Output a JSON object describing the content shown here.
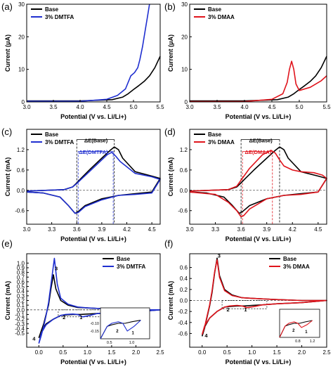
{
  "colors": {
    "base": "#000000",
    "dmtfa": "#1f2fd0",
    "dmaa": "#e0141c",
    "axis": "#000000"
  },
  "chart_data": [
    {
      "id": "a",
      "panel_label": "(a)",
      "type": "line",
      "xlabel": "Potential (V vs. Li/Li+)",
      "ylabel": "Current (μA)",
      "xlim": [
        3.0,
        5.5
      ],
      "ylim": [
        0,
        30
      ],
      "xticks": [
        3.0,
        3.5,
        4.0,
        4.5,
        5.0,
        5.5
      ],
      "xtick_labels": [
        "3.0",
        "3.5",
        "4.0",
        "4.5",
        "5.0",
        "5.5"
      ],
      "yticks": [
        0,
        10,
        20,
        30
      ],
      "ytick_labels": [
        "0",
        "10",
        "20",
        "30"
      ],
      "legend_position": "top-left",
      "series": [
        {
          "name": "Base",
          "color": "#000000",
          "x": [
            3.0,
            4.0,
            4.6,
            4.8,
            4.9,
            5.0,
            5.1,
            5.2,
            5.3,
            5.4,
            5.5
          ],
          "y": [
            0.3,
            0.3,
            0.7,
            1.5,
            2.5,
            3.8,
            5.0,
            6.3,
            8.0,
            10.5,
            14.0
          ]
        },
        {
          "name": "3% DMTFA",
          "color": "#1f2fd0",
          "x": [
            3.0,
            4.0,
            4.5,
            4.7,
            4.85,
            4.95,
            5.02,
            5.08,
            5.12,
            5.17,
            5.22,
            5.26,
            5.3
          ],
          "y": [
            0.2,
            0.2,
            0.8,
            2.0,
            4.0,
            8.0,
            9.0,
            10.5,
            13.0,
            17.0,
            22.0,
            26.0,
            30.0
          ]
        }
      ]
    },
    {
      "id": "b",
      "panel_label": "(b)",
      "type": "line",
      "xlabel": "Potential (V vs. Li/Li+)",
      "ylabel": "Current (μA)",
      "xlim": [
        3.0,
        5.5
      ],
      "ylim": [
        0,
        30
      ],
      "xticks": [
        3.0,
        3.5,
        4.0,
        4.5,
        5.0,
        5.5
      ],
      "xtick_labels": [
        "3.0",
        "3.5",
        "4.0",
        "4.5",
        "5.0",
        "5.5"
      ],
      "yticks": [
        0,
        10,
        20,
        30
      ],
      "ytick_labels": [
        "0",
        "10",
        "20",
        "30"
      ],
      "legend_position": "top-left",
      "series": [
        {
          "name": "Base",
          "color": "#000000",
          "x": [
            3.0,
            4.0,
            4.6,
            4.8,
            4.9,
            5.0,
            5.1,
            5.2,
            5.3,
            5.4,
            5.5
          ],
          "y": [
            0.3,
            0.3,
            0.7,
            1.5,
            2.5,
            3.8,
            5.0,
            6.3,
            8.0,
            10.5,
            14.0
          ]
        },
        {
          "name": "3% DMAA",
          "color": "#e0141c",
          "x": [
            3.0,
            4.0,
            4.5,
            4.7,
            4.78,
            4.82,
            4.86,
            4.9,
            4.94,
            5.0,
            5.2,
            5.4,
            5.5
          ],
          "y": [
            0.1,
            0.1,
            0.8,
            2.5,
            6.0,
            10.0,
            12.5,
            10.0,
            5.5,
            3.5,
            4.5,
            6.5,
            8.0
          ]
        }
      ]
    },
    {
      "id": "c",
      "panel_label": "(c)",
      "type": "line",
      "xlabel": "Potential (V vs. Li/Li+)",
      "ylabel": "Current (mA)",
      "xlim": [
        3.0,
        4.6
      ],
      "ylim": [
        -1.0,
        1.8
      ],
      "xticks": [
        3.0,
        3.3,
        3.6,
        3.9,
        4.2,
        4.5
      ],
      "xtick_labels": [
        "3.0",
        "3.3",
        "3.6",
        "3.9",
        "4.2",
        "4.5"
      ],
      "yticks": [
        -0.6,
        0.0,
        0.6,
        1.2
      ],
      "ytick_labels": [
        "-0.6",
        "0.0",
        "0.6",
        "1.2"
      ],
      "legend_position": "top-left",
      "annotations": [
        {
          "text": "ΔE(Base)",
          "x": 3.83,
          "y": 1.42,
          "color": "#000000"
        },
        {
          "text": "ΔE(DMTFA)",
          "x": 3.8,
          "y": 1.07,
          "color": "#1f2fd0"
        }
      ],
      "series": [
        {
          "name": "Base",
          "color": "#000000",
          "x": [
            3.0,
            3.45,
            3.55,
            3.6,
            3.65,
            3.75,
            3.9,
            4.0,
            4.05,
            4.1,
            4.15,
            4.3,
            4.5,
            4.6,
            4.5,
            4.3,
            4.1,
            3.9,
            3.7,
            3.62,
            3.58,
            3.5,
            3.4,
            3.2,
            3.0
          ],
          "y": [
            -0.02,
            0.02,
            0.1,
            0.22,
            0.35,
            0.6,
            0.95,
            1.18,
            1.28,
            1.2,
            0.95,
            0.55,
            0.42,
            0.35,
            -0.05,
            -0.1,
            -0.15,
            -0.25,
            -0.45,
            -0.62,
            -0.68,
            -0.45,
            -0.2,
            -0.08,
            -0.05
          ]
        },
        {
          "name": "3% DMTFA",
          "color": "#1f2fd0",
          "x": [
            3.0,
            3.45,
            3.55,
            3.6,
            3.65,
            3.75,
            3.9,
            3.97,
            4.02,
            4.07,
            4.12,
            4.3,
            4.5,
            4.6,
            4.5,
            4.3,
            4.1,
            3.9,
            3.7,
            3.62,
            3.58,
            3.5,
            3.4,
            3.2,
            3.0
          ],
          "y": [
            -0.02,
            0.02,
            0.1,
            0.2,
            0.32,
            0.55,
            0.9,
            1.06,
            1.12,
            1.0,
            0.85,
            0.5,
            0.4,
            0.32,
            -0.08,
            -0.12,
            -0.15,
            -0.28,
            -0.48,
            -0.65,
            -0.68,
            -0.45,
            -0.2,
            -0.08,
            -0.05
          ]
        }
      ]
    },
    {
      "id": "d",
      "panel_label": "(d)",
      "type": "line",
      "xlabel": "Potential (V vs. Li/Li+)",
      "ylabel": "Current (mA)",
      "xlim": [
        3.0,
        4.6
      ],
      "ylim": [
        -1.0,
        1.8
      ],
      "xticks": [
        3.0,
        3.3,
        3.6,
        3.9,
        4.2,
        4.5
      ],
      "xtick_labels": [
        "3.0",
        "3.3",
        "3.6",
        "3.9",
        "4.2",
        "4.5"
      ],
      "yticks": [
        -0.6,
        0.0,
        0.6,
        1.2
      ],
      "ytick_labels": [
        "-0.6",
        "0.0",
        "0.6",
        "1.2"
      ],
      "legend_position": "top-left",
      "annotations": [
        {
          "text": "ΔE(Base)",
          "x": 3.83,
          "y": 1.42,
          "color": "#000000"
        },
        {
          "text": "ΔE(DMAA)",
          "x": 3.8,
          "y": 1.07,
          "color": "#e0141c"
        }
      ],
      "series": [
        {
          "name": "Base",
          "color": "#000000",
          "x": [
            3.0,
            3.45,
            3.55,
            3.6,
            3.65,
            3.75,
            3.9,
            4.0,
            4.05,
            4.1,
            4.15,
            4.3,
            4.5,
            4.6,
            4.5,
            4.3,
            4.1,
            3.9,
            3.7,
            3.62,
            3.58,
            3.5,
            3.4,
            3.2,
            3.0
          ],
          "y": [
            -0.02,
            0.02,
            0.1,
            0.22,
            0.35,
            0.6,
            0.95,
            1.18,
            1.28,
            1.2,
            0.95,
            0.55,
            0.42,
            0.35,
            -0.05,
            -0.1,
            -0.15,
            -0.25,
            -0.45,
            -0.62,
            -0.68,
            -0.45,
            -0.2,
            -0.08,
            -0.05
          ]
        },
        {
          "name": "3% DMAA",
          "color": "#e0141c",
          "x": [
            3.0,
            3.45,
            3.55,
            3.6,
            3.7,
            3.85,
            3.95,
            4.0,
            4.05,
            4.1,
            4.2,
            4.3,
            4.45,
            4.55,
            4.6,
            4.5,
            4.3,
            4.1,
            3.9,
            3.7,
            3.63,
            3.6,
            3.55,
            3.45,
            3.3,
            3.0
          ],
          "y": [
            -0.02,
            0.02,
            0.12,
            0.3,
            0.65,
            1.05,
            1.18,
            1.1,
            0.9,
            0.72,
            0.6,
            0.55,
            0.52,
            0.45,
            0.35,
            -0.05,
            -0.12,
            -0.15,
            -0.25,
            -0.55,
            -0.75,
            -0.78,
            -0.6,
            -0.35,
            -0.12,
            -0.05
          ]
        }
      ]
    },
    {
      "id": "e",
      "panel_label": "(e)",
      "type": "line",
      "xlabel": "Potential (V vs. Li/Li+)",
      "ylabel": "Current (mA)",
      "xlim": [
        -0.25,
        2.5
      ],
      "ylim": [
        -0.8,
        1.2
      ],
      "xticks": [
        0.0,
        0.5,
        1.0,
        1.5,
        2.0,
        2.5
      ],
      "xtick_labels": [
        "0.0",
        "0.5",
        "1.0",
        "1.5",
        "2.0",
        "2.5"
      ],
      "yticks": [
        -0.5,
        -0.4,
        -0.3,
        -0.2,
        -0.1,
        0.0,
        0.1,
        0.2,
        0.3,
        0.4,
        0.5,
        0.6,
        0.7,
        0.8,
        0.9,
        1.0
      ],
      "ytick_labels": [
        "-0.5",
        "-0.4",
        "-0.3",
        "-0.2",
        "-0.1",
        "0.0",
        "0.1",
        "0.2",
        "0.3",
        "0.4",
        "0.5",
        "0.6",
        "0.7",
        "0.8",
        "0.9",
        "1.0"
      ],
      "legend_position": "top-right",
      "annotations": [
        {
          "text": "3",
          "x": 0.36,
          "y": 0.85
        },
        {
          "text": "2",
          "x": 0.52,
          "y": -0.2
        },
        {
          "text": "1",
          "x": 0.87,
          "y": -0.2
        },
        {
          "text": "4",
          "x": -0.1,
          "y": -0.66
        }
      ],
      "inset": {
        "xticks": [
          0.5,
          1.0
        ],
        "xtick_labels": [
          "0.5",
          "1.0"
        ],
        "yticks": [
          -0.1,
          -0.15
        ],
        "ytick_labels": [
          "-0.10",
          "-0.15"
        ],
        "annotations": [
          "2",
          "1"
        ]
      },
      "series": [
        {
          "name": "Base",
          "color": "#000000",
          "x": [
            0.0,
            0.05,
            0.1,
            0.15,
            0.2,
            0.25,
            0.3,
            0.35,
            0.45,
            0.6,
            0.8,
            1.0,
            1.4,
            2.0,
            2.5,
            2.0,
            1.5,
            1.2,
            1.0,
            0.85,
            0.7,
            0.55,
            0.45,
            0.3,
            0.15,
            0.05,
            0.0
          ],
          "y": [
            -0.6,
            -0.45,
            -0.3,
            -0.1,
            0.1,
            0.45,
            0.75,
            0.45,
            0.2,
            0.1,
            0.05,
            0.04,
            0.02,
            0.0,
            0.0,
            -0.04,
            -0.06,
            -0.08,
            -0.09,
            -0.1,
            -0.1,
            -0.11,
            -0.12,
            -0.2,
            -0.3,
            -0.45,
            -0.6
          ]
        },
        {
          "name": "3% DMTFA",
          "color": "#1f2fd0",
          "x": [
            0.0,
            0.05,
            0.1,
            0.15,
            0.2,
            0.27,
            0.32,
            0.38,
            0.45,
            0.6,
            0.8,
            1.0,
            1.4,
            2.0,
            2.5,
            2.0,
            1.5,
            1.2,
            1.05,
            0.9,
            0.8,
            0.7,
            0.55,
            0.45,
            0.3,
            0.15,
            0.05,
            0.0
          ],
          "y": [
            -0.72,
            -0.55,
            -0.35,
            -0.12,
            0.15,
            0.7,
            1.1,
            0.55,
            0.25,
            0.12,
            0.06,
            0.04,
            0.02,
            0.0,
            0.0,
            -0.04,
            -0.06,
            -0.08,
            -0.12,
            -0.15,
            -0.1,
            -0.09,
            -0.1,
            -0.12,
            -0.2,
            -0.32,
            -0.5,
            -0.72
          ]
        }
      ]
    },
    {
      "id": "f",
      "panel_label": "(f)",
      "type": "line",
      "xlabel": "Potential (V vs. Li/Li+)",
      "ylabel": "Current (mA)",
      "xlim": [
        -0.25,
        2.5
      ],
      "ylim": [
        -0.85,
        0.85
      ],
      "xticks": [
        0.0,
        0.5,
        1.0,
        1.5,
        2.0,
        2.5
      ],
      "xtick_labels": [
        "0.0",
        "0.5",
        "1.0",
        "1.5",
        "2.0",
        "2.5"
      ],
      "yticks": [
        -0.6,
        -0.4,
        -0.2,
        0.0,
        0.2,
        0.4,
        0.6
      ],
      "ytick_labels": [
        "-0.6",
        "-0.4",
        "-0.2",
        "0.0",
        "0.2",
        "0.4",
        "0.6"
      ],
      "legend_position": "top-right",
      "annotations": [
        {
          "text": "3",
          "x": 0.34,
          "y": 0.78
        },
        {
          "text": "2",
          "x": 0.52,
          "y": -0.2
        },
        {
          "text": "1",
          "x": 0.87,
          "y": -0.2
        },
        {
          "text": "4",
          "x": 0.08,
          "y": -0.67
        }
      ],
      "inset": {
        "xticks": [
          0.8,
          1.2
        ],
        "xtick_labels": [
          "0.8",
          "1.2"
        ],
        "annotations": [
          "2",
          "1"
        ]
      },
      "series": [
        {
          "name": "Base",
          "color": "#000000",
          "x": [
            0.0,
            0.05,
            0.1,
            0.15,
            0.2,
            0.25,
            0.3,
            0.35,
            0.45,
            0.6,
            0.8,
            1.0,
            1.4,
            2.0,
            2.5,
            2.0,
            1.5,
            1.2,
            1.0,
            0.85,
            0.7,
            0.55,
            0.45,
            0.3,
            0.15,
            0.05,
            0.0
          ],
          "y": [
            -0.65,
            -0.5,
            -0.3,
            -0.1,
            0.15,
            0.5,
            0.77,
            0.45,
            0.2,
            0.1,
            0.05,
            0.04,
            0.02,
            0.0,
            0.0,
            -0.04,
            -0.06,
            -0.08,
            -0.09,
            -0.1,
            -0.1,
            -0.11,
            -0.12,
            -0.2,
            -0.32,
            -0.48,
            -0.65
          ]
        },
        {
          "name": "3% DMAA",
          "color": "#e0141c",
          "x": [
            0.0,
            0.05,
            0.1,
            0.15,
            0.2,
            0.25,
            0.3,
            0.35,
            0.45,
            0.6,
            0.8,
            1.0,
            1.4,
            2.0,
            2.5,
            2.0,
            1.5,
            1.2,
            1.05,
            0.9,
            0.8,
            0.7,
            0.55,
            0.45,
            0.3,
            0.15,
            0.05,
            0.0
          ],
          "y": [
            -0.62,
            -0.48,
            -0.28,
            -0.08,
            0.18,
            0.52,
            0.74,
            0.42,
            0.18,
            0.09,
            0.05,
            0.04,
            0.02,
            0.0,
            0.0,
            -0.04,
            -0.06,
            -0.08,
            -0.11,
            -0.13,
            -0.1,
            -0.09,
            -0.1,
            -0.12,
            -0.2,
            -0.32,
            -0.46,
            -0.62
          ]
        }
      ]
    }
  ]
}
